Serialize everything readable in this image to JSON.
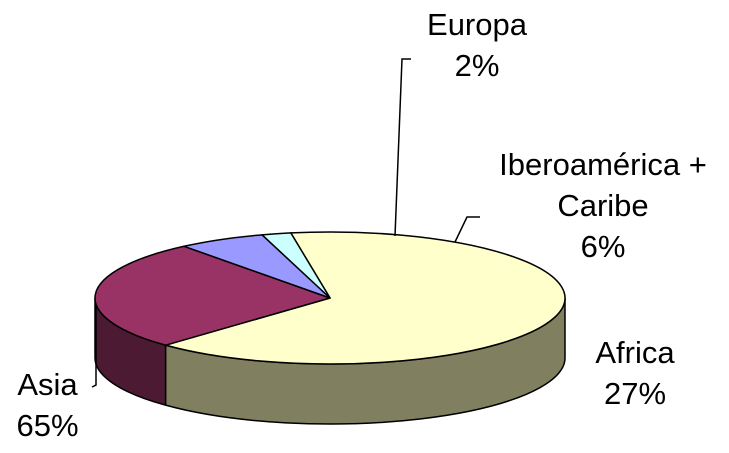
{
  "chart_data": {
    "type": "pie",
    "style": "3d",
    "title": "",
    "legend": "none",
    "categories": [
      "Asia",
      "Europa",
      "Iberoamérica + Caribe",
      "Africa"
    ],
    "values": [
      65,
      2,
      6,
      27
    ],
    "value_labels": [
      "65%",
      "2%",
      "6%",
      "27%"
    ],
    "colors": {
      "Asia": "#FFFFCC",
      "Europa": "#CCFFFF",
      "Iberoamérica + Caribe": "#9999FF",
      "Africa": "#993366"
    },
    "side_colors": {
      "Asia": "#808060",
      "Africa": "#4D1A33"
    }
  },
  "labels": {
    "europa_name": "Europa",
    "europa_value": "2%",
    "ibero_line1": "Iberoamérica +",
    "ibero_line2": "Caribe",
    "ibero_value": "6%",
    "africa_name": "Africa",
    "africa_value": "27%",
    "asia_name": "Asia",
    "asia_value": "65%"
  }
}
